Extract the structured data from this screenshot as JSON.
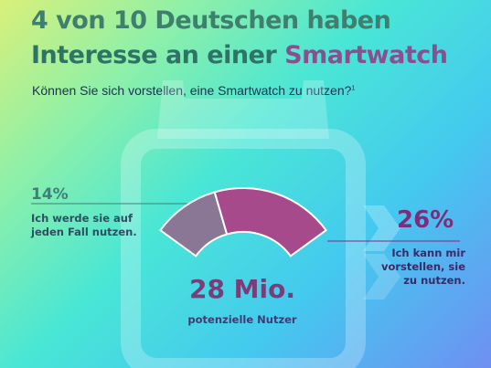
{
  "title": {
    "line1": "4 von 10 Deutschen haben",
    "line2a": "Interesse an einer",
    "line2b": "Smartwatch"
  },
  "question": {
    "text": "Können Sie sich vorstellen, eine Smartwatch zu nutzen?",
    "footnote": "1"
  },
  "colors": {
    "segment_sure": "#8a7796",
    "segment_maybe": "#a64a8c",
    "title_green": "#3f7f6d",
    "title_purple": "#8a4f8f"
  },
  "chart_data": {
    "type": "gauge",
    "segments": [
      {
        "value": 14,
        "unit": "%",
        "label": "Ich werde sie auf jeden Fall nutzen."
      },
      {
        "value": 26,
        "unit": "%",
        "label": "Ich kann mir vorstellen, sie zu nutzen."
      }
    ],
    "total": {
      "value": "28 Mio.",
      "label": "potenzielle Nutzer"
    }
  },
  "labels": {
    "left_pct": "14%",
    "left_text": "Ich werde sie auf jeden Fall nutzen.",
    "right_pct": "26%",
    "right_text": "Ich kann mir vorstellen, sie zu nutzen."
  }
}
